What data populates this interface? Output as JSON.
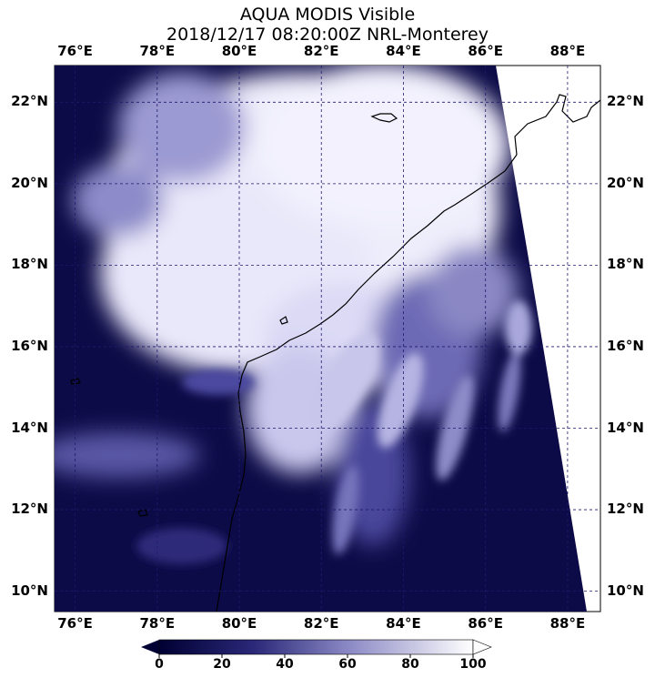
{
  "title": {
    "line1": "AQUA MODIS Visible",
    "line2": "2018/12/17 08:20:00Z NRL-Monterey"
  },
  "map": {
    "lon_range": [
      75.5,
      88.8
    ],
    "lat_range": [
      9.5,
      22.9
    ],
    "lon_ticks": [
      "76°E",
      "78°E",
      "80°E",
      "82°E",
      "84°E",
      "86°E",
      "88°E"
    ],
    "lat_ticks": [
      "22°N",
      "20°N",
      "18°N",
      "16°N",
      "14°N",
      "12°N",
      "10°N"
    ],
    "lon_tick_values": [
      76,
      78,
      80,
      82,
      84,
      86,
      88
    ],
    "lat_tick_values": [
      22,
      20,
      18,
      16,
      14,
      12,
      10
    ],
    "background_color": "#0d0b47",
    "cloud_color": "#f4f3ff",
    "grid_color": "#1e1a6e",
    "coastline_color": "#000000"
  },
  "colorbar": {
    "min": 0,
    "max": 100,
    "labels": [
      "0",
      "20",
      "40",
      "60",
      "80",
      "100"
    ],
    "color_low": "#000033",
    "color_high": "#ffffff"
  }
}
